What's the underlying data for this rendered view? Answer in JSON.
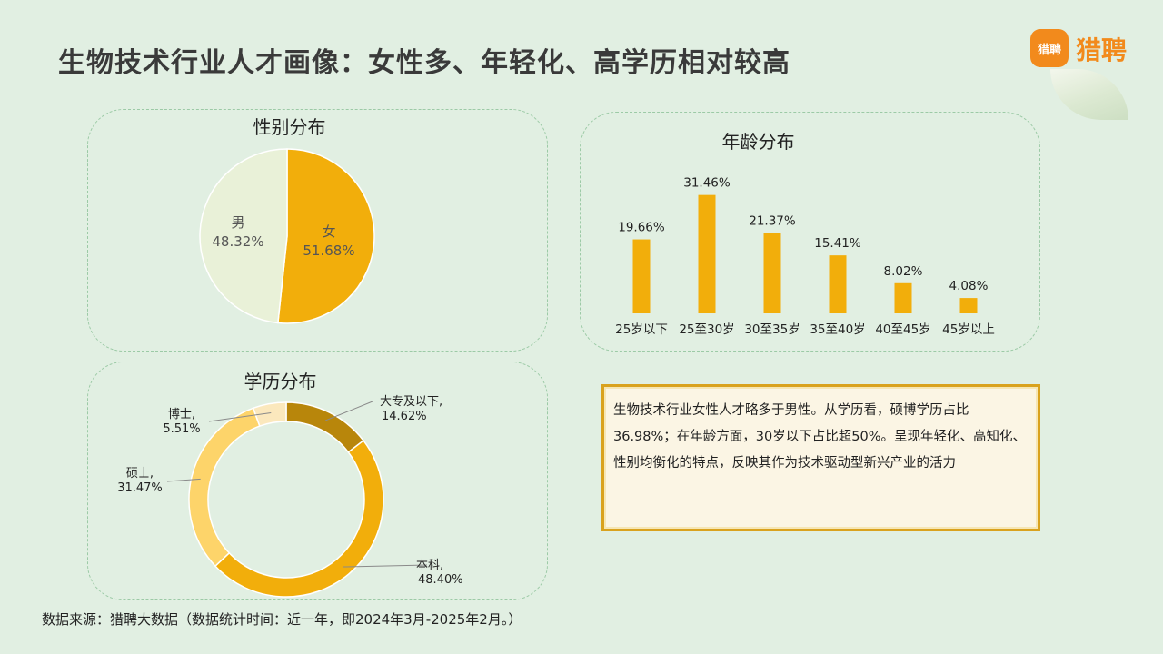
{
  "title": "生物技术行业人才画像：女性多、年轻化、高学历相对较高",
  "logo": {
    "badge": "猎聘",
    "text": "猎聘"
  },
  "summary": "生物技术行业女性人才略多于男性。从学历看，硕博学历占比36.98%；在年龄方面，30岁以下占比超50%。呈现年轻化、高知化、性别均衡化的特点，反映其作为技术驱动型新兴产业的活力",
  "source": "数据来源：猎聘大数据（数据统计时间：近一年，即2024年3月-2025年2月。）",
  "colors": {
    "female": "#f2ae0b",
    "male": "#e9f1d8",
    "bar": "#f2ae0b"
  },
  "chart_data": [
    {
      "type": "pie",
      "title": "性别分布",
      "labels": [
        "女",
        "男"
      ],
      "values": [
        51.68,
        48.32
      ],
      "value_labels": [
        "51.68%",
        "48.32%"
      ],
      "colors": [
        "#f2ae0b",
        "#e9f1d8"
      ]
    },
    {
      "type": "bar",
      "title": "年龄分布",
      "categories": [
        "25岁以下",
        "25至30岁",
        "30至35岁",
        "35至40岁",
        "40至45岁",
        "45岁以上"
      ],
      "values": [
        19.66,
        31.46,
        21.37,
        15.41,
        8.02,
        4.08
      ],
      "value_labels": [
        "19.66%",
        "31.46%",
        "21.37%",
        "15.41%",
        "8.02%",
        "4.08%"
      ],
      "ylim": [
        0,
        35
      ]
    },
    {
      "type": "pie",
      "subtype": "donut",
      "title": "学历分布",
      "labels": [
        "大专及以下,",
        "本科,",
        "硕士,",
        "博士,"
      ],
      "values": [
        14.62,
        48.4,
        31.47,
        5.51
      ],
      "value_labels": [
        "14.62%",
        "48.40%",
        "31.47%",
        "5.51%"
      ],
      "colors": [
        "#b8860b",
        "#f2ae0b",
        "#fdd46a",
        "#fbe8bd"
      ]
    }
  ]
}
